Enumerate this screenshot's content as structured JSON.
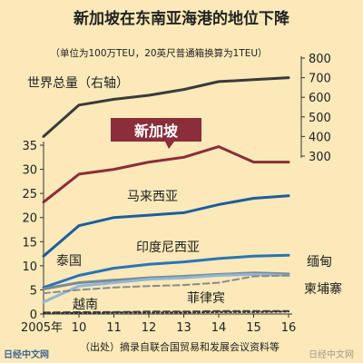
{
  "chart_data": {
    "type": "line",
    "title": "新加坡在东南亚海港的地位下降",
    "subtitle": "（单位为100万TEU，20英尺普通箱换算为1TEU）",
    "x": [
      "2005年",
      "10",
      "11",
      "12",
      "13",
      "14",
      "15",
      "16"
    ],
    "x_values": [
      2005,
      2010,
      2011,
      2012,
      2013,
      2014,
      2015,
      2016
    ],
    "y_left": {
      "ticks": [
        "0",
        "5",
        "10",
        "15",
        "20",
        "25",
        "30",
        "35"
      ],
      "range": [
        0,
        35
      ]
    },
    "y_right": {
      "ticks": [
        "300",
        "400",
        "500",
        "600",
        "700",
        "800"
      ],
      "range": [
        260,
        800
      ]
    },
    "series": [
      {
        "name": "世界总量（右轴）",
        "axis": "right",
        "color": "#3a3a3a",
        "style": "solid",
        "points": [
          [
            2005,
            400
          ],
          [
            2010,
            560
          ],
          [
            2011,
            590
          ],
          [
            2012,
            610
          ],
          [
            2013,
            640
          ],
          [
            2014,
            680
          ],
          [
            2015,
            690
          ],
          [
            2016,
            700
          ]
        ]
      },
      {
        "name": "新加坡",
        "axis": "left",
        "color": "#8b2d3a",
        "style": "solid",
        "points": [
          [
            2005,
            23.2
          ],
          [
            2010,
            29.0
          ],
          [
            2011,
            30.0
          ],
          [
            2012,
            31.5
          ],
          [
            2013,
            32.5
          ],
          [
            2014,
            34.7
          ],
          [
            2015,
            31.5
          ],
          [
            2016,
            31.5
          ]
        ]
      },
      {
        "name": "马来西亚",
        "axis": "left",
        "color": "#1d5d9e",
        "style": "solid",
        "points": [
          [
            2005,
            12.0
          ],
          [
            2010,
            18.3
          ],
          [
            2011,
            20.0
          ],
          [
            2012,
            20.5
          ],
          [
            2013,
            21.0
          ],
          [
            2014,
            22.7
          ],
          [
            2015,
            24.0
          ],
          [
            2016,
            24.5
          ]
        ]
      },
      {
        "name": "印度尼西亚",
        "axis": "left",
        "color": "#2a73b8",
        "style": "solid",
        "points": [
          [
            2005,
            5.5
          ],
          [
            2010,
            8.0
          ],
          [
            2011,
            9.5
          ],
          [
            2012,
            10.3
          ],
          [
            2013,
            10.8
          ],
          [
            2014,
            11.5
          ],
          [
            2015,
            12.0
          ],
          [
            2016,
            12.2
          ]
        ]
      },
      {
        "name": "泰国",
        "axis": "left",
        "color": "#7a8a95",
        "style": "solid",
        "points": [
          [
            2005,
            5.2
          ],
          [
            2010,
            6.5
          ],
          [
            2011,
            7.0
          ],
          [
            2012,
            7.5
          ],
          [
            2013,
            7.8
          ],
          [
            2014,
            8.2
          ],
          [
            2015,
            8.5
          ],
          [
            2016,
            8.3
          ]
        ]
      },
      {
        "name": "越南",
        "axis": "left",
        "color": "#8fb7d8",
        "style": "solid",
        "points": [
          [
            2005,
            2.5
          ],
          [
            2010,
            5.8
          ],
          [
            2011,
            6.5
          ],
          [
            2012,
            7.2
          ],
          [
            2013,
            7.5
          ],
          [
            2014,
            8.0
          ],
          [
            2015,
            8.2
          ],
          [
            2016,
            8.0
          ]
        ]
      },
      {
        "name": "缅甸",
        "axis": "left",
        "color": "#4a4a4a",
        "style": "dashed",
        "points": [
          [
            2005,
            0.3
          ],
          [
            2010,
            0.4
          ],
          [
            2011,
            0.4
          ],
          [
            2012,
            0.5
          ],
          [
            2013,
            0.5
          ],
          [
            2014,
            0.6
          ],
          [
            2015,
            0.6
          ],
          [
            2016,
            0.6
          ]
        ]
      },
      {
        "name": "菲律宾",
        "axis": "left",
        "color": "#8a8a8a",
        "style": "dashed",
        "points": [
          [
            2005,
            4.3
          ],
          [
            2010,
            5.0
          ],
          [
            2011,
            5.5
          ],
          [
            2012,
            5.8
          ],
          [
            2013,
            6.0
          ],
          [
            2014,
            6.5
          ],
          [
            2015,
            7.8
          ],
          [
            2016,
            8.0
          ]
        ]
      },
      {
        "name": "柬埔寨",
        "axis": "left",
        "color": "#333333",
        "style": "dotted",
        "points": [
          [
            2005,
            0.2
          ],
          [
            2010,
            0.2
          ],
          [
            2011,
            0.3
          ],
          [
            2012,
            0.3
          ],
          [
            2013,
            0.3
          ],
          [
            2014,
            0.4
          ],
          [
            2015,
            0.4
          ],
          [
            2016,
            0.5
          ]
        ]
      }
    ],
    "grid": false,
    "source": "（出处）摘录自联合国贸易和发展会议资料等",
    "watermark_left": "日经中文网",
    "watermark_right": "日经中文网"
  },
  "colors": {
    "background": "#fbe9b9",
    "singapore_label_bg": "#8b2d3a",
    "text": "#222222"
  }
}
